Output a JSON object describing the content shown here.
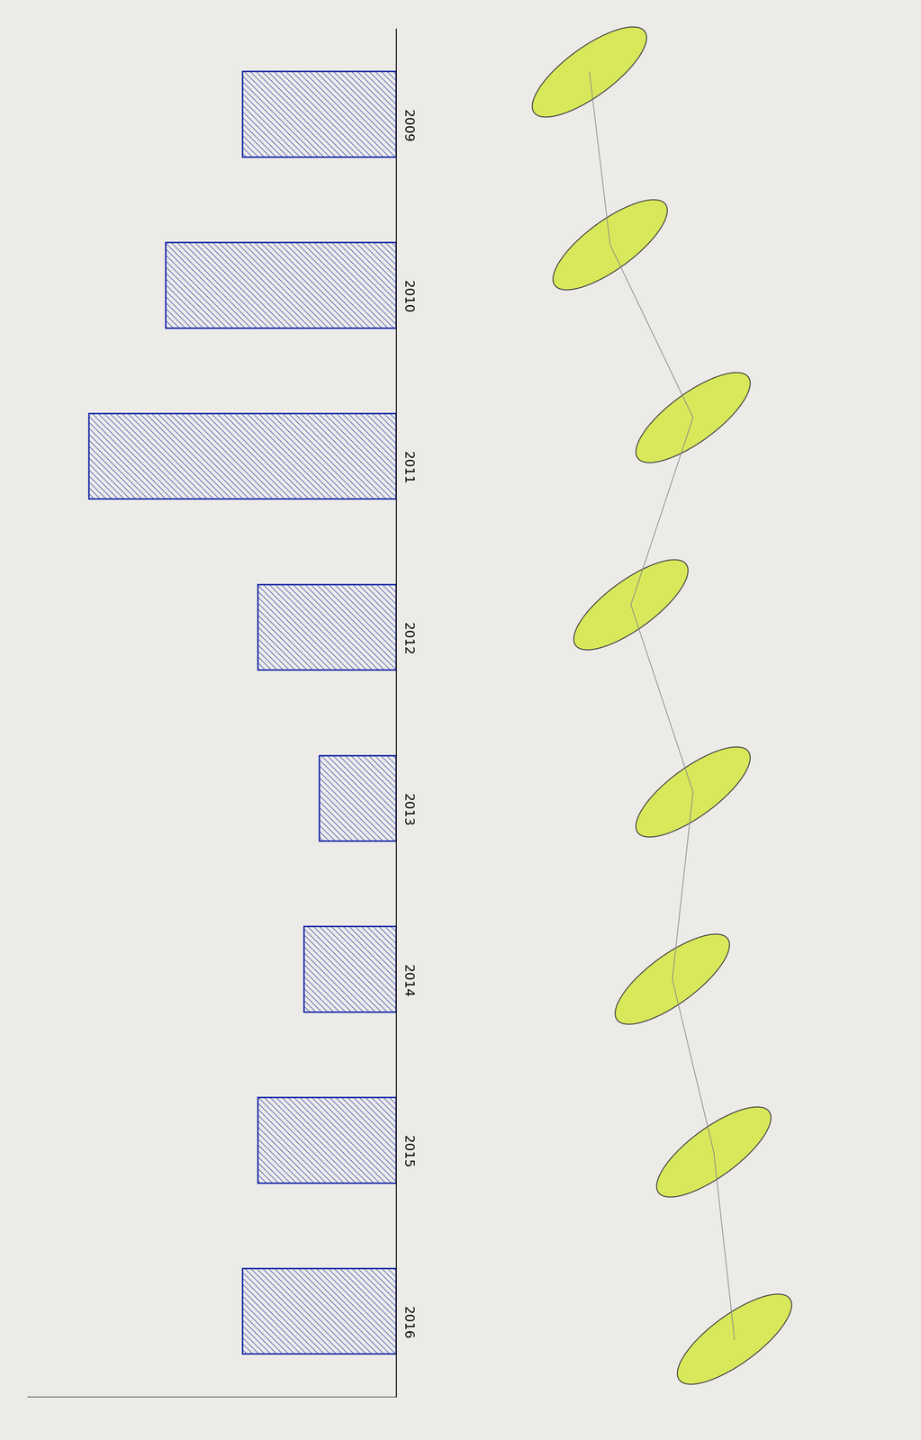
{
  "chart_data": {
    "type": "bar",
    "orientation": "horizontal",
    "categories": [
      "2009",
      "2010",
      "2011",
      "2012",
      "2013",
      "2014",
      "2015",
      "2016"
    ],
    "values": [
      5,
      7.5,
      10,
      4.5,
      2.5,
      3,
      4.5,
      5
    ],
    "color": "#1f2fa8",
    "xlim": [
      0,
      12
    ],
    "tick_labels": "y",
    "grid": false
  }
}
